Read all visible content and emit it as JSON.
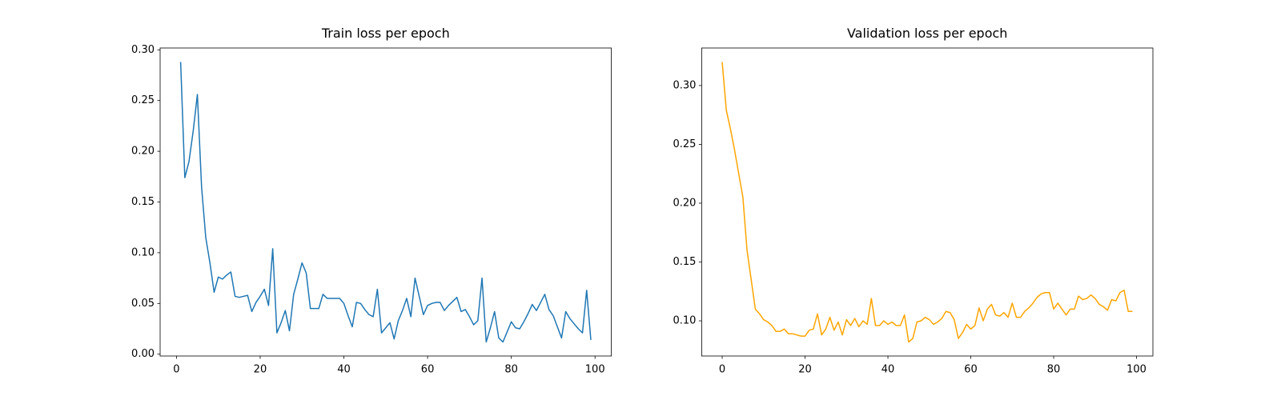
{
  "chart_data": [
    {
      "type": "line",
      "title": "Train loss per epoch",
      "color": "#1f77b4",
      "x": [
        1,
        2,
        3,
        4,
        5,
        6,
        7,
        8,
        9,
        10,
        11,
        12,
        13,
        14,
        15,
        16,
        17,
        18,
        19,
        20,
        21,
        22,
        23,
        24,
        25,
        26,
        27,
        28,
        29,
        30,
        31,
        32,
        33,
        34,
        35,
        36,
        37,
        38,
        39,
        40,
        41,
        42,
        43,
        44,
        45,
        46,
        47,
        48,
        49,
        50,
        51,
        52,
        53,
        54,
        55,
        56,
        57,
        58,
        59,
        60,
        61,
        62,
        63,
        64,
        65,
        66,
        67,
        68,
        69,
        70,
        71,
        72,
        73,
        74,
        75,
        76,
        77,
        78,
        79,
        80,
        81,
        82,
        83,
        84,
        85,
        86,
        87,
        88,
        89,
        90,
        91,
        92,
        93,
        94,
        95,
        96,
        97,
        98,
        99
      ],
      "values": [
        0.288,
        0.174,
        0.19,
        0.22,
        0.256,
        0.165,
        0.115,
        0.09,
        0.061,
        0.076,
        0.074,
        0.078,
        0.081,
        0.057,
        0.056,
        0.057,
        0.058,
        0.042,
        0.051,
        0.057,
        0.064,
        0.048,
        0.104,
        0.021,
        0.031,
        0.043,
        0.023,
        0.059,
        0.074,
        0.09,
        0.08,
        0.045,
        0.045,
        0.045,
        0.059,
        0.055,
        0.055,
        0.055,
        0.055,
        0.05,
        0.038,
        0.027,
        0.051,
        0.05,
        0.044,
        0.039,
        0.037,
        0.064,
        0.021,
        0.026,
        0.031,
        0.015,
        0.033,
        0.043,
        0.055,
        0.037,
        0.075,
        0.057,
        0.039,
        0.048,
        0.05,
        0.051,
        0.051,
        0.043,
        0.048,
        0.052,
        0.056,
        0.042,
        0.044,
        0.037,
        0.029,
        0.033,
        0.075,
        0.012,
        0.026,
        0.042,
        0.016,
        0.012,
        0.022,
        0.032,
        0.026,
        0.025,
        0.032,
        0.04,
        0.049,
        0.043,
        0.051,
        0.059,
        0.044,
        0.038,
        0.027,
        0.016,
        0.042,
        0.035,
        0.03,
        0.025,
        0.021,
        0.063,
        0.014
      ],
      "xlim": [
        -3.9,
        103.9
      ],
      "xticks": [
        0,
        20,
        40,
        60,
        80,
        100
      ],
      "ylim": [
        -0.0018,
        0.3018
      ],
      "yticks": [
        {
          "value": 0,
          "label": "0.00"
        },
        {
          "value": 0.05,
          "label": "0.05"
        },
        {
          "value": 0.1,
          "label": "0.10"
        },
        {
          "value": 0.15,
          "label": "0.15"
        },
        {
          "value": 0.2,
          "label": "0.20"
        },
        {
          "value": 0.25,
          "label": "0.25"
        },
        {
          "value": 0.3,
          "label": "0.30"
        }
      ]
    },
    {
      "type": "line",
      "title": "Validation loss per epoch",
      "color": "#ffa500",
      "x": [
        0,
        1,
        2,
        3,
        4,
        5,
        6,
        7,
        8,
        9,
        10,
        11,
        12,
        13,
        14,
        15,
        16,
        17,
        18,
        19,
        20,
        21,
        22,
        23,
        24,
        25,
        26,
        27,
        28,
        29,
        30,
        31,
        32,
        33,
        34,
        35,
        36,
        37,
        38,
        39,
        40,
        41,
        42,
        43,
        44,
        45,
        46,
        47,
        48,
        49,
        50,
        51,
        52,
        53,
        54,
        55,
        56,
        57,
        58,
        59,
        60,
        61,
        62,
        63,
        64,
        65,
        66,
        67,
        68,
        69,
        70,
        71,
        72,
        73,
        74,
        75,
        76,
        77,
        78,
        79,
        80,
        81,
        82,
        83,
        84,
        85,
        86,
        87,
        88,
        89,
        90,
        91,
        92,
        93,
        94,
        95,
        96,
        97,
        98,
        99
      ],
      "values": [
        0.32,
        0.279,
        0.263,
        0.245,
        0.225,
        0.205,
        0.16,
        0.135,
        0.11,
        0.106,
        0.101,
        0.099,
        0.096,
        0.091,
        0.091,
        0.093,
        0.089,
        0.089,
        0.088,
        0.087,
        0.087,
        0.092,
        0.093,
        0.106,
        0.088,
        0.093,
        0.103,
        0.092,
        0.099,
        0.088,
        0.101,
        0.096,
        0.102,
        0.095,
        0.1,
        0.097,
        0.119,
        0.096,
        0.096,
        0.1,
        0.097,
        0.099,
        0.096,
        0.096,
        0.105,
        0.082,
        0.085,
        0.099,
        0.1,
        0.103,
        0.101,
        0.097,
        0.099,
        0.102,
        0.108,
        0.107,
        0.101,
        0.085,
        0.09,
        0.097,
        0.093,
        0.096,
        0.111,
        0.1,
        0.11,
        0.114,
        0.105,
        0.104,
        0.107,
        0.103,
        0.115,
        0.103,
        0.103,
        0.108,
        0.111,
        0.115,
        0.12,
        0.123,
        0.124,
        0.124,
        0.11,
        0.115,
        0.11,
        0.105,
        0.11,
        0.11,
        0.121,
        0.118,
        0.119,
        0.122,
        0.119,
        0.114,
        0.112,
        0.109,
        0.118,
        0.117,
        0.124,
        0.126,
        0.108,
        0.108
      ],
      "xlim": [
        -4.95,
        103.95
      ],
      "xticks": [
        0,
        20,
        40,
        60,
        80,
        100
      ],
      "ylim": [
        0.0701,
        0.3319
      ],
      "yticks": [
        {
          "value": 0.1,
          "label": "0.10"
        },
        {
          "value": 0.15,
          "label": "0.15"
        },
        {
          "value": 0.2,
          "label": "0.20"
        },
        {
          "value": 0.25,
          "label": "0.25"
        },
        {
          "value": 0.3,
          "label": "0.30"
        }
      ]
    }
  ]
}
